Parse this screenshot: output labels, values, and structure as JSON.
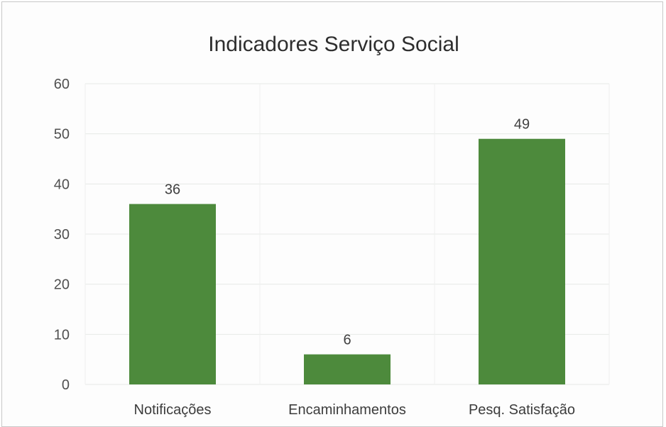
{
  "chart_data": {
    "type": "bar",
    "title": "Indicadores Serviço Social",
    "xlabel": "",
    "ylabel": "",
    "categories": [
      "Notificações",
      "Encaminhamentos",
      "Pesq. Satisfação"
    ],
    "values": [
      36,
      6,
      49
    ],
    "data_labels": [
      "36",
      "6",
      "49"
    ],
    "ylim": [
      0,
      60
    ],
    "yticks": [
      "0",
      "10",
      "20",
      "30",
      "40",
      "50",
      "60"
    ],
    "grid": true,
    "legend": "none",
    "bar_color": "#4d8a3c"
  }
}
